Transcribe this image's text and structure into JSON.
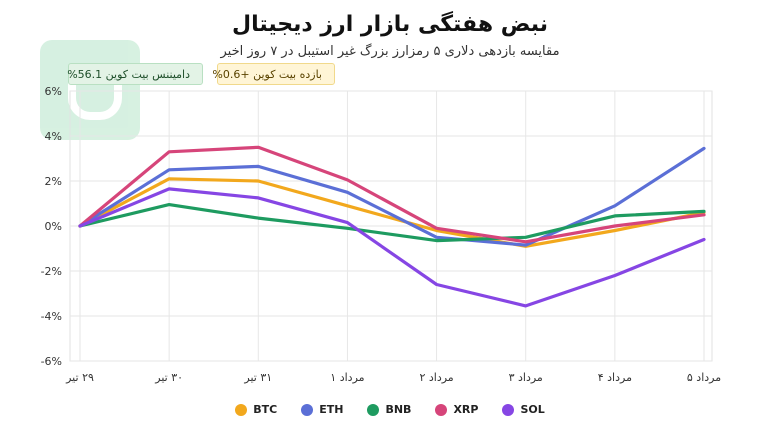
{
  "header": {
    "title": "نبض هفتگی بازار ارز دیجیتال",
    "subtitle": "مقایسه بازدهی دلاری ۵ رمزارز بزرگ غیر استیبل در ۷ روز اخیر"
  },
  "badges": {
    "dominance": "دامیننس بیت کوین 56.1%",
    "btc_return": "بازده بیت کوین +0.6%"
  },
  "chart_data": {
    "type": "line",
    "title": "نبض هفتگی بازار ارز دیجیتال",
    "subtitle": "مقایسه بازدهی دلاری ۵ رمزارز بزرگ غیر استیبل در ۷ روز اخیر",
    "categories": [
      "۲۹ تیر",
      "۳۰ تیر",
      "۳۱ تیر",
      "مرداد ۱",
      "مرداد ۲",
      "مرداد ۳",
      "مرداد ۴",
      "مرداد ۵"
    ],
    "ylim": [
      -6,
      6
    ],
    "yticks": [
      "6%",
      "4%",
      "2%",
      "0%",
      "-2%",
      "-4%",
      "-6%"
    ],
    "ytick_values": [
      6,
      4,
      2,
      0,
      -2,
      -4,
      -6
    ],
    "grid": true,
    "legend": "bottom",
    "series": [
      {
        "name": "BTC",
        "color": "#f2a81d",
        "values": [
          0,
          2.1,
          2.0,
          0.9,
          -0.2,
          -0.9,
          -0.2,
          0.6
        ]
      },
      {
        "name": "ETH",
        "color": "#5b6fd6",
        "values": [
          0,
          2.5,
          2.65,
          1.5,
          -0.5,
          -0.85,
          0.9,
          3.45
        ]
      },
      {
        "name": "BNB",
        "color": "#1e9b60",
        "values": [
          0,
          0.95,
          0.35,
          -0.1,
          -0.65,
          -0.5,
          0.45,
          0.65
        ]
      },
      {
        "name": "XRP",
        "color": "#d6457a",
        "values": [
          0,
          3.3,
          3.5,
          2.05,
          -0.1,
          -0.7,
          0.0,
          0.5
        ]
      },
      {
        "name": "SOL",
        "color": "#8646e4",
        "values": [
          0,
          1.65,
          1.25,
          0.15,
          -2.6,
          -3.55,
          -2.2,
          -0.6
        ]
      }
    ]
  }
}
